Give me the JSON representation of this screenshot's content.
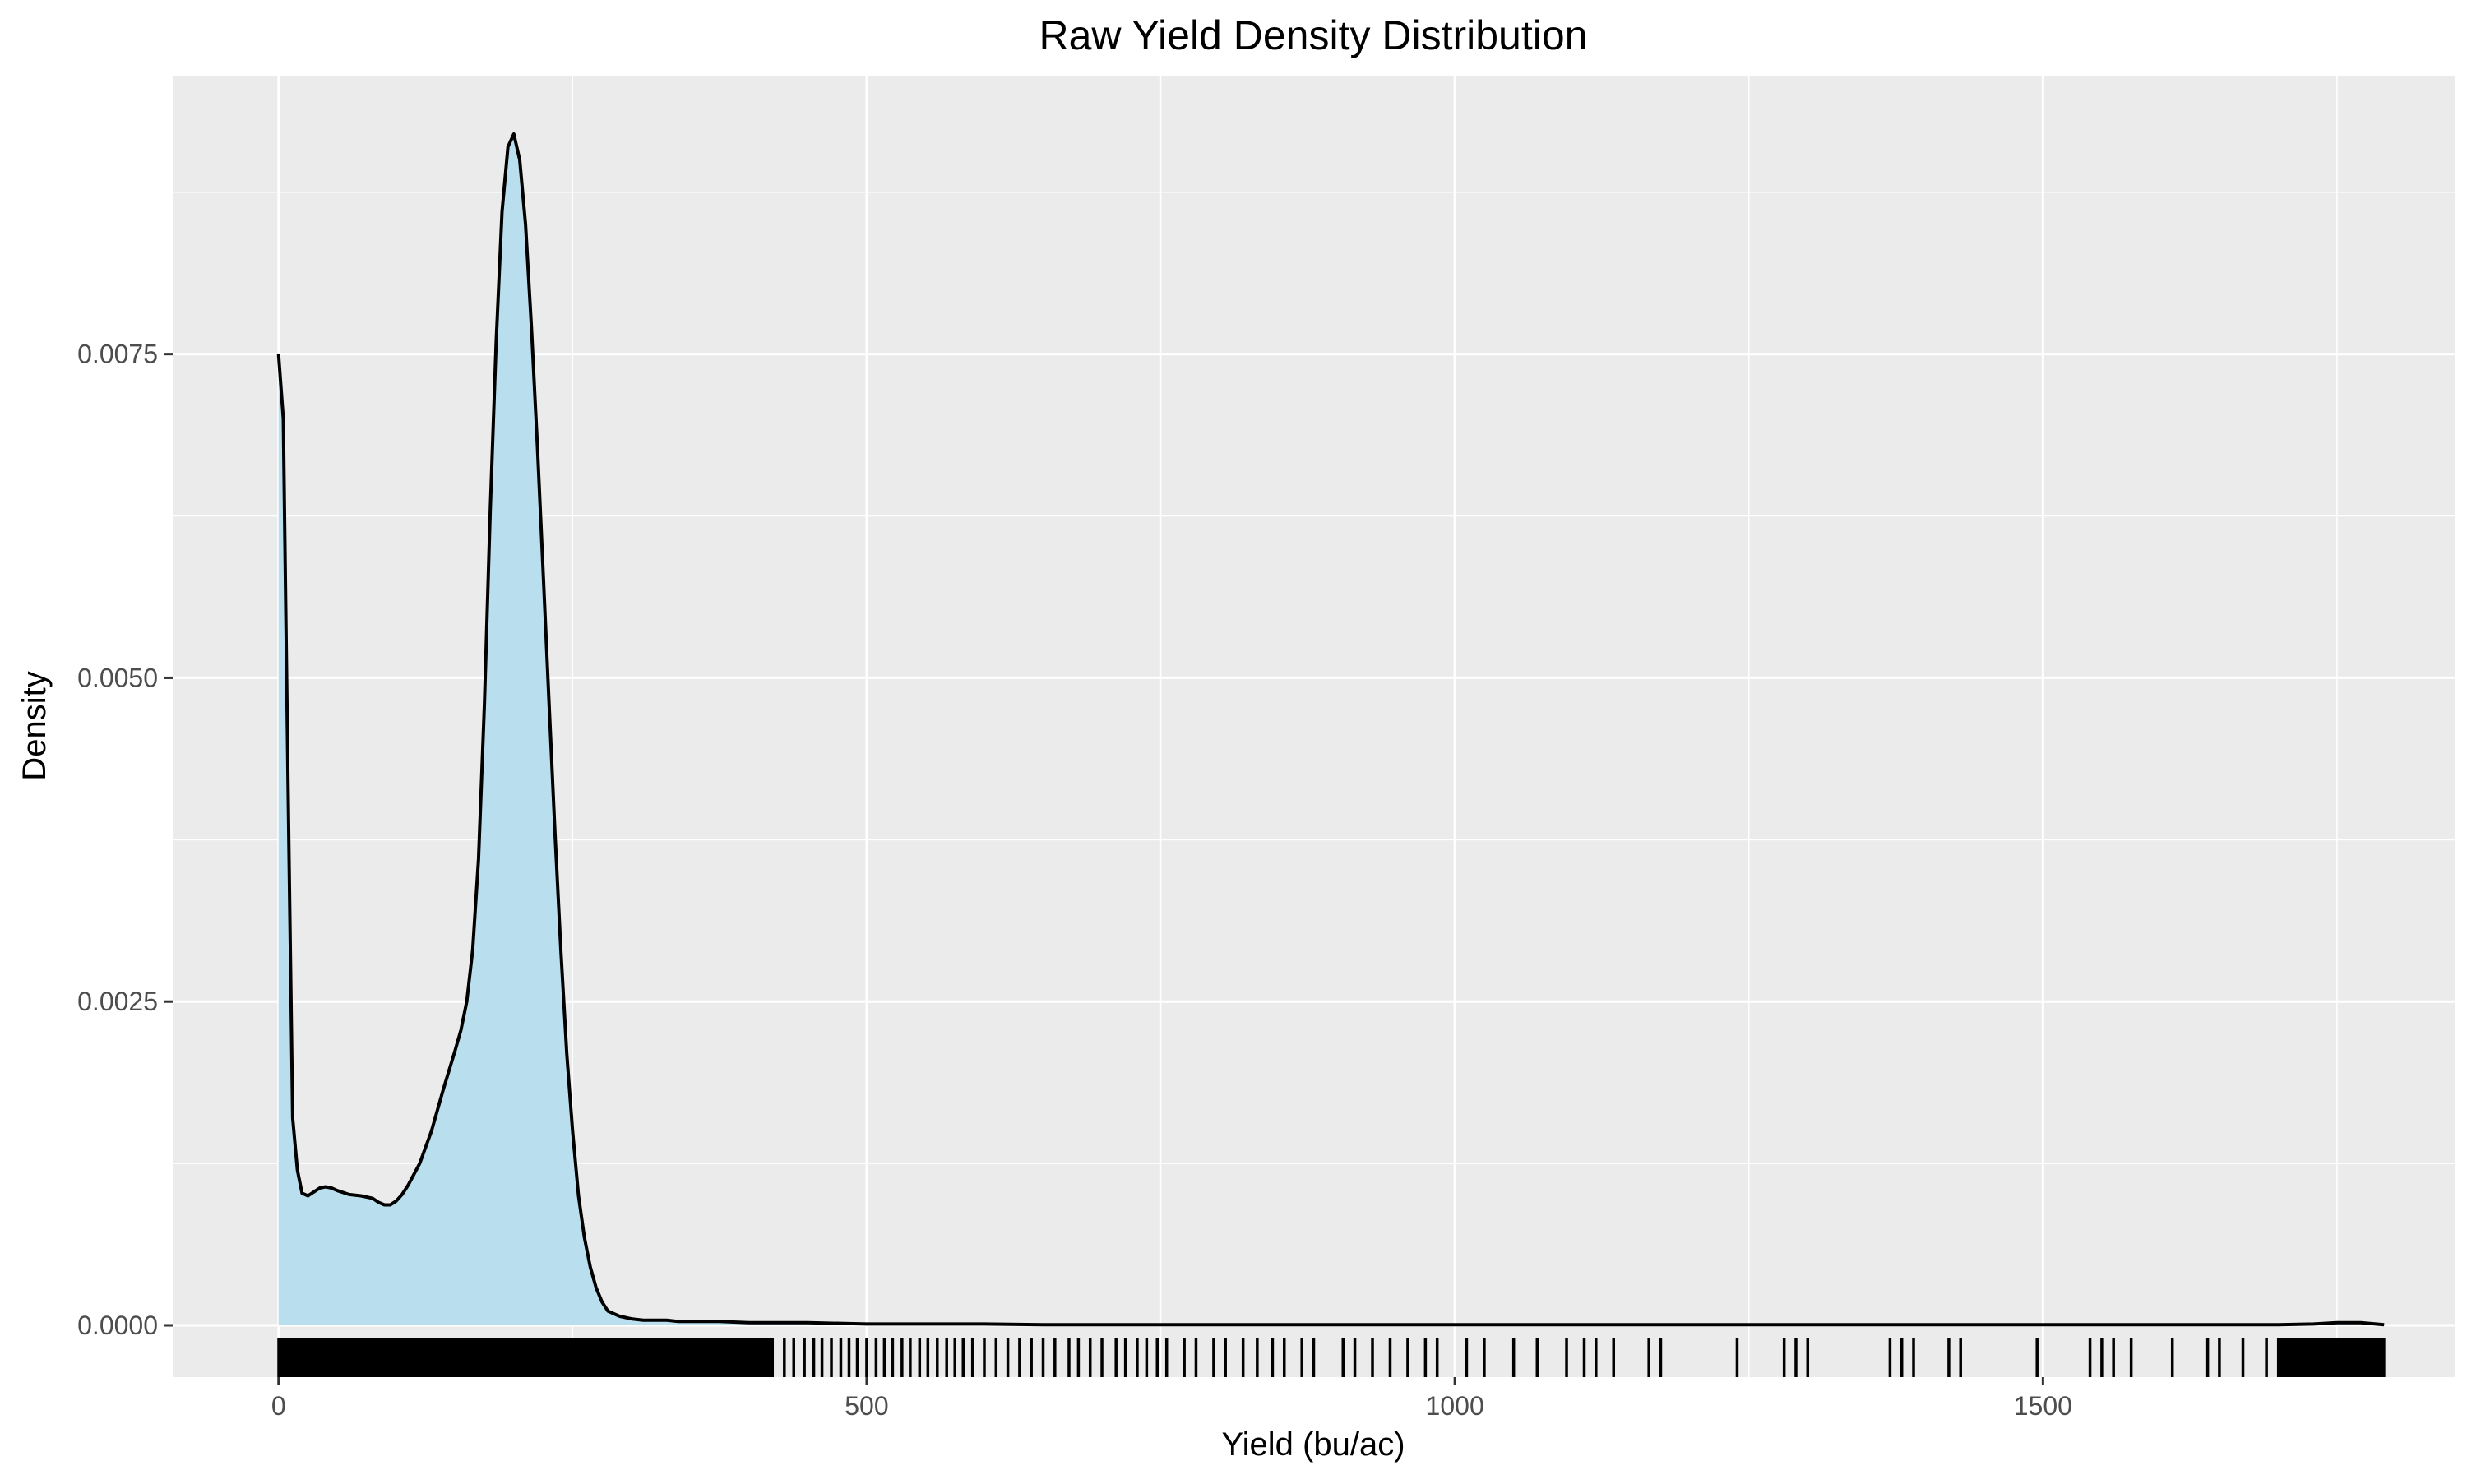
{
  "chart_data": {
    "type": "area",
    "title": "Raw Yield Density Distribution",
    "xlabel": "Yield (bu/ac)",
    "ylabel": "Density",
    "xlim": [
      -90,
      1850
    ],
    "ylim": [
      -0.0004,
      0.00965
    ],
    "x_ticks": [
      0,
      500,
      1000,
      1500
    ],
    "x_tick_labels": [
      "0",
      "500",
      "1000",
      "1500"
    ],
    "y_ticks": [
      0,
      0.0025,
      0.005,
      0.0075
    ],
    "y_tick_labels": [
      "0.0000",
      "0.0025",
      "0.0050",
      "0.0075"
    ],
    "grid": true,
    "background": "#ebebeb",
    "fill_color": "#b9dfee",
    "line_color": "#000000",
    "series": [
      {
        "x": [
          0,
          4,
          8,
          12,
          16,
          20,
          25,
          30,
          35,
          40,
          45,
          50,
          60,
          70,
          80,
          85,
          90,
          95,
          100,
          105,
          110,
          120,
          130,
          140,
          150,
          155,
          160,
          165,
          170,
          175,
          180,
          185,
          190,
          195,
          200,
          205,
          210,
          215,
          220,
          225,
          230,
          235,
          240,
          245,
          250,
          255,
          260,
          265,
          270,
          275,
          280,
          285,
          290,
          295,
          300,
          310,
          320,
          330,
          340,
          350,
          375,
          400,
          450,
          500,
          550,
          600,
          650,
          700,
          800,
          900,
          1000,
          1100,
          1200,
          1300,
          1400,
          1500,
          1600,
          1650,
          1700,
          1730,
          1750,
          1770,
          1790
        ],
        "y": [
          0.0075,
          0.007,
          0.0042,
          0.0016,
          0.0012,
          0.00102,
          0.001,
          0.00103,
          0.00106,
          0.00107,
          0.00106,
          0.00104,
          0.00101,
          0.001,
          0.00098,
          0.00095,
          0.00093,
          0.00093,
          0.00096,
          0.00101,
          0.00108,
          0.00125,
          0.0015,
          0.00182,
          0.00212,
          0.00228,
          0.0025,
          0.0029,
          0.0036,
          0.0048,
          0.0063,
          0.0076,
          0.0086,
          0.0091,
          0.0092,
          0.009,
          0.0085,
          0.0077,
          0.0068,
          0.0058,
          0.0048,
          0.0038,
          0.0029,
          0.0021,
          0.0015,
          0.001,
          0.00068,
          0.00045,
          0.00029,
          0.00018,
          0.00011,
          9e-05,
          7e-05,
          6e-05,
          5e-05,
          4e-05,
          4e-05,
          4e-05,
          3e-05,
          3e-05,
          3e-05,
          2e-05,
          2e-05,
          1e-05,
          1e-05,
          1e-05,
          5e-06,
          5e-06,
          5e-06,
          5e-06,
          5e-06,
          5e-06,
          5e-06,
          5e-06,
          5e-06,
          5e-06,
          5e-06,
          5e-06,
          5e-06,
          1e-05,
          2e-05,
          2e-05,
          5e-06
        ]
      }
    ],
    "rug": {
      "dense_ranges": [
        [
          0,
          420
        ],
        [
          1700,
          1790
        ]
      ],
      "values": [
        430,
        438,
        447,
        455,
        462,
        470,
        478,
        485,
        492,
        500,
        508,
        515,
        522,
        530,
        537,
        545,
        552,
        560,
        568,
        575,
        582,
        590,
        600,
        610,
        620,
        630,
        640,
        650,
        660,
        672,
        680,
        690,
        700,
        712,
        720,
        730,
        738,
        747,
        755,
        770,
        780,
        795,
        805,
        820,
        832,
        845,
        855,
        870,
        880,
        905,
        915,
        930,
        945,
        960,
        975,
        985,
        1010,
        1025,
        1050,
        1070,
        1095,
        1110,
        1120,
        1135,
        1165,
        1175,
        1240,
        1280,
        1290,
        1300,
        1370,
        1380,
        1390,
        1420,
        1430,
        1495,
        1540,
        1550,
        1560,
        1575,
        1610,
        1640,
        1650,
        1670,
        1690
      ]
    }
  }
}
